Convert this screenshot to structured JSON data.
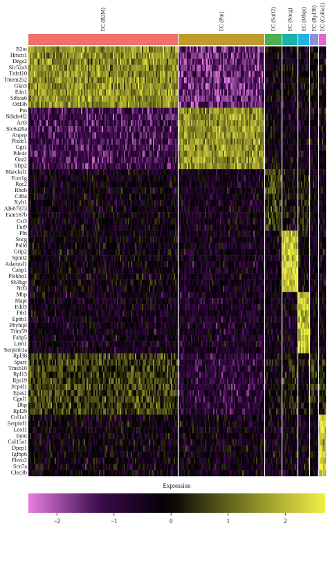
{
  "chart_data": {
    "type": "heatmap",
    "title": "",
    "clusters": [
      {
        "name": "EC (B2M)",
        "color": "#f0706b"
      },
      {
        "name": "EC (Ptn)",
        "color": "#bf9a2d"
      },
      {
        "name": "EC (Sulf2)",
        "color": "#4caf50"
      },
      {
        "name": "EC (Sncg)",
        "color": "#1ab3a6"
      },
      {
        "name": "EC (Mbpt)",
        "color": "#1fb3e0"
      },
      {
        "name": "EC (Rpl38)",
        "color": "#8f8fe0"
      },
      {
        "name": "EC (Col6a1)",
        "color": "#e068c8"
      }
    ],
    "genes": [
      "B2m",
      "Hmcn1",
      "Degs2",
      "Slc52a3",
      "Tnfsf10",
      "Tmem252",
      "Gkn3",
      "Edn1",
      "St8sia6",
      "Odf3b",
      "Ptn",
      "Ndufa4l2",
      "Art3",
      "Slc6a20a",
      "Anpep",
      "Plxdc1",
      "Ggt1",
      "Pde4c",
      "Oaz2",
      "Sfrp2",
      "Marcksl1",
      "Fcer1g",
      "Rac2",
      "Rhob",
      "Cd84",
      "Xylt1",
      "AI607873",
      "Fam167b",
      "Cst3",
      "Fut9",
      "Pln",
      "Sncg",
      "Palld",
      "Grip2",
      "Spint2",
      "Adamtsl1",
      "Cabp1",
      "Plekho1",
      "Sh3bgr",
      "Ntf3",
      "Mbp",
      "Mapt",
      "Edil3",
      "Fth1",
      "Ephb1",
      "Phyhipl",
      "Trim59",
      "Fabp5",
      "Lrrn1",
      "Serpinb1a",
      "Rpl38",
      "Sparc",
      "Tmsb10",
      "Rpl13",
      "Rps19",
      "Pcp4l1",
      "Epas1",
      "Cgnl1",
      "Dbp",
      "Rpl29",
      "Col1a1",
      "Serpinf1",
      "Loxl1",
      "Inmt",
      "Col15a1",
      "Dpep1",
      "Igfbp6",
      "Piezo2",
      "Scn7a",
      "Clec3b"
    ],
    "gene_blocks": [
      {
        "cluster": "EC (B2M)",
        "rows": [
          0,
          9
        ]
      },
      {
        "cluster": "EC (Ptn)",
        "rows": [
          10,
          19
        ]
      },
      {
        "cluster": "EC (Sulf2)",
        "rows": [
          20,
          29
        ]
      },
      {
        "cluster": "EC (Sncg)",
        "rows": [
          30,
          39
        ]
      },
      {
        "cluster": "EC (Mbpt)",
        "rows": [
          40,
          49
        ]
      },
      {
        "cluster": "EC (Rpl38)",
        "rows": [
          50,
          59
        ]
      },
      {
        "cluster": "EC (Col6a1)",
        "rows": [
          60,
          69
        ]
      }
    ],
    "mean_expression": [
      [
        1.5,
        -1.6,
        -0.3,
        -0.2,
        -0.2,
        0.0,
        -0.1
      ],
      [
        -1.2,
        1.6,
        -0.2,
        -0.4,
        -0.4,
        -0.3,
        -0.3
      ],
      [
        -0.3,
        -0.4,
        0.6,
        -0.2,
        0.2,
        -0.2,
        -0.3
      ],
      [
        -0.2,
        -0.5,
        -0.3,
        2.2,
        0.0,
        -0.3,
        -0.3
      ],
      [
        -0.4,
        -0.6,
        -0.3,
        -0.4,
        2.1,
        -0.3,
        -0.3
      ],
      [
        0.6,
        -0.9,
        -0.2,
        0.2,
        -0.2,
        0.3,
        0.3
      ],
      [
        -0.2,
        -0.3,
        -0.3,
        -0.3,
        -0.3,
        -0.3,
        2.3
      ]
    ],
    "legend": {
      "title": "Expression",
      "ticks": [
        -2,
        -1,
        0,
        1,
        2
      ],
      "range": [
        -2.5,
        2.7
      ],
      "colors": [
        "#e47fe2",
        "#000000",
        "#f0f046"
      ]
    }
  }
}
